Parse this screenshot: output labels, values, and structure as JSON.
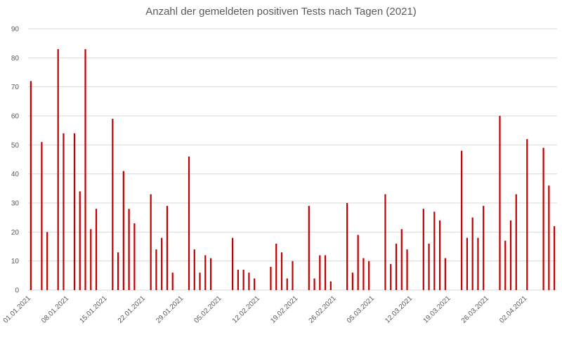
{
  "chart_data": {
    "type": "bar",
    "title": "Anzahl der gemeldeten positiven Tests nach Tagen (2021)",
    "xlabel": "",
    "ylabel": "",
    "ylim": [
      0,
      90
    ],
    "yticks": [
      0,
      10,
      20,
      30,
      40,
      50,
      60,
      70,
      80,
      90
    ],
    "grid": true,
    "legend": "none",
    "bar_color": "#c00000",
    "start_date": "2021-01-01",
    "x_tick_labels": [
      "01.01.2021",
      "08.01.2021",
      "15.01.2021",
      "22.01.2021",
      "29.01.2021",
      "05.02.2021",
      "12.02.2021",
      "19.02.2021",
      "26.02.2021",
      "05.03.2021",
      "12.03.2021",
      "19.03.2021",
      "26.03.2021",
      "02.04.2021"
    ],
    "values": [
      72,
      0,
      51,
      20,
      0,
      83,
      54,
      0,
      54,
      34,
      83,
      21,
      28,
      0,
      0,
      59,
      13,
      41,
      28,
      23,
      0,
      0,
      33,
      14,
      18,
      29,
      6,
      0,
      0,
      46,
      14,
      6,
      12,
      11,
      0,
      0,
      0,
      18,
      7,
      7,
      6,
      4,
      0,
      0,
      8,
      16,
      13,
      4,
      10,
      0,
      0,
      29,
      4,
      12,
      12,
      3,
      0,
      0,
      30,
      6,
      19,
      11,
      10,
      0,
      0,
      33,
      9,
      16,
      21,
      14,
      0,
      0,
      28,
      16,
      27,
      24,
      11,
      0,
      0,
      48,
      18,
      25,
      18,
      29,
      0,
      0,
      60,
      17,
      24,
      33,
      0,
      52,
      0,
      0,
      49,
      36,
      22
    ]
  }
}
